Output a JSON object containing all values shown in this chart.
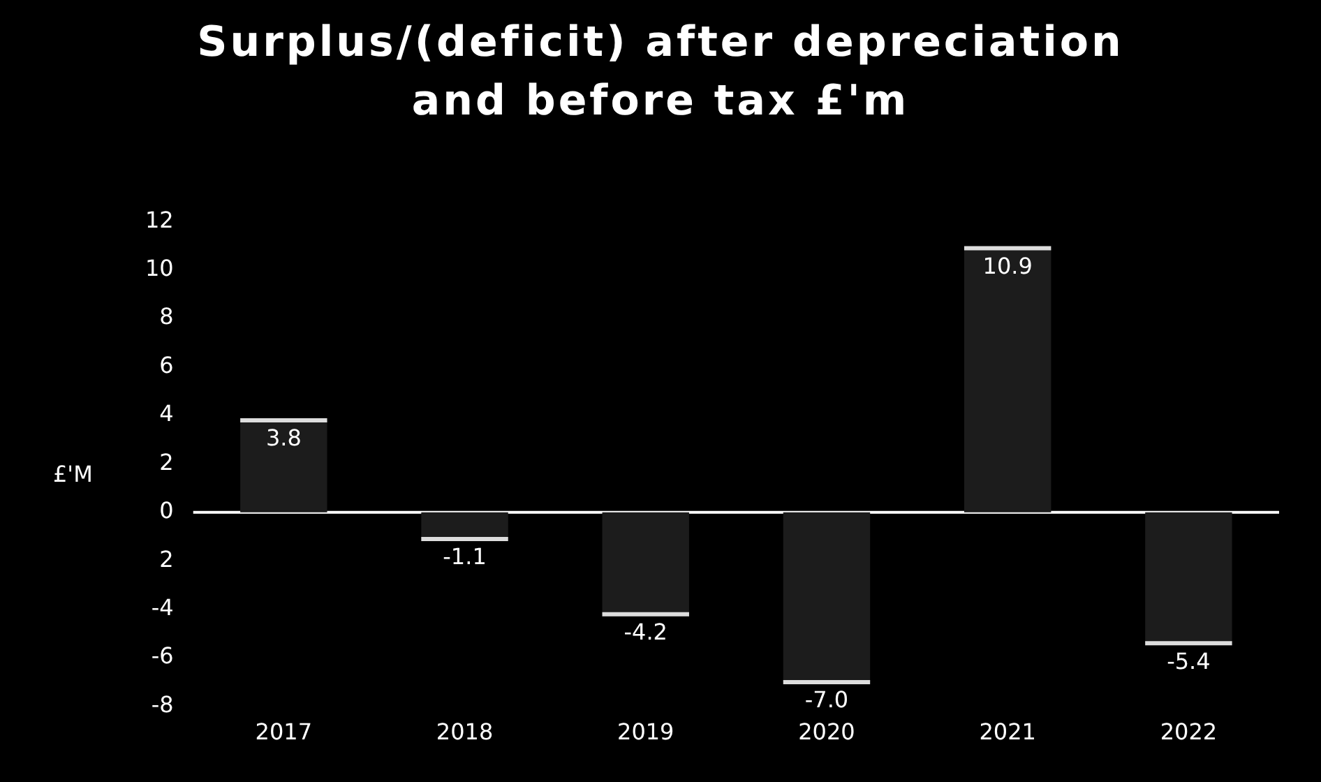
{
  "chart_data": {
    "type": "bar",
    "title": "Surplus/(deficit) after depreciation and before tax £'m",
    "ylabel": "£'M",
    "categories": [
      "2017",
      "2018",
      "2019",
      "2020",
      "2021",
      "2022"
    ],
    "values": [
      3.8,
      -1.1,
      -4.2,
      -7.0,
      10.9,
      -5.4
    ],
    "value_labels": [
      "3.8",
      "-1.1",
      "-4.2",
      "-7.0",
      "10.9",
      "-5.4"
    ],
    "color": "#1c1c1c",
    "ylim": [
      -8,
      12
    ],
    "yticks": [
      -8,
      -6,
      -4,
      {
        "value": -2,
        "label": "2"
      },
      0,
      2,
      4,
      6,
      8,
      10,
      12
    ],
    "ref_lines": [
      {
        "axis": "y",
        "value": 0,
        "color": "#ffffff"
      }
    ],
    "grid": false,
    "legend": false
  }
}
